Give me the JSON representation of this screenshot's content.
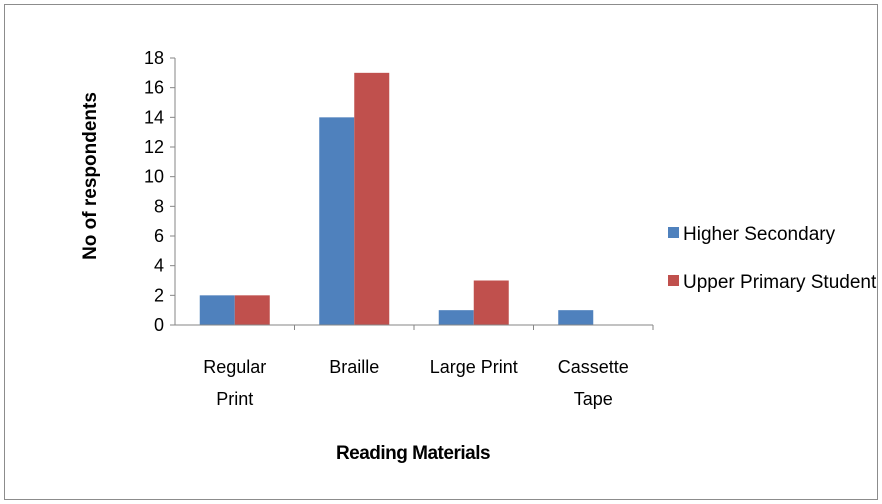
{
  "chart_data": {
    "type": "bar",
    "categories": [
      [
        "Regular",
        "Print"
      ],
      [
        "Braille"
      ],
      [
        "Large Print"
      ],
      [
        "Cassette",
        "Tape"
      ]
    ],
    "series": [
      {
        "name": "Higher Secondary",
        "values": [
          2,
          14,
          1,
          1
        ],
        "color": "#4f81bd"
      },
      {
        "name": "Upper Primary Student",
        "values": [
          2,
          17,
          3,
          0
        ],
        "color": "#c0504d"
      }
    ],
    "title": "",
    "xlabel": "Reading Materials",
    "ylabel": "No of respondents",
    "ylim": [
      0,
      18
    ],
    "yticks": [
      "0",
      "2",
      "4",
      "6",
      "8",
      "10",
      "12",
      "14",
      "16",
      "18"
    ],
    "grid": false,
    "legend_position": "right"
  }
}
